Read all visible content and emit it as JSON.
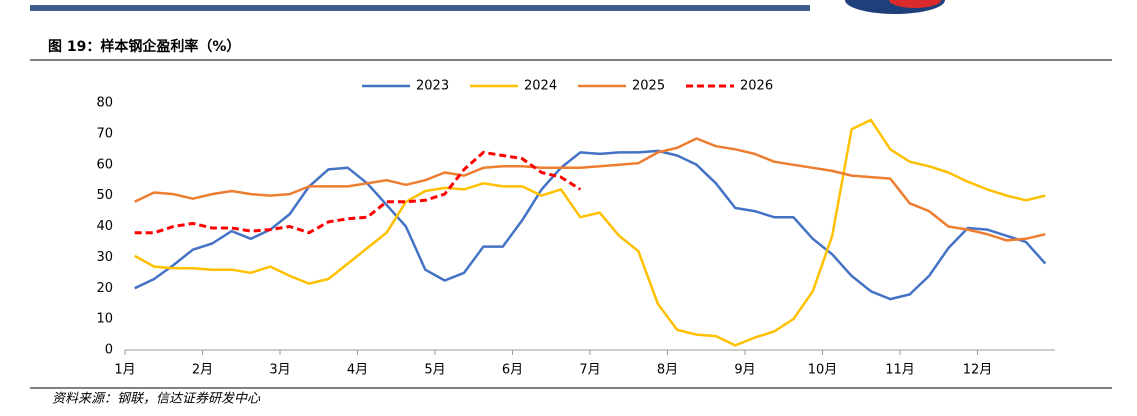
{
  "header": {
    "title": "图 19：样本钢企盈利率（%）"
  },
  "chart_data": {
    "type": "line",
    "categories": [
      "1月",
      null,
      null,
      null,
      "2月",
      null,
      null,
      null,
      "3月",
      null,
      null,
      null,
      "4月",
      null,
      null,
      null,
      "5月",
      null,
      null,
      null,
      "6月",
      null,
      null,
      null,
      "7月",
      null,
      null,
      null,
      "8月",
      null,
      null,
      null,
      "9月",
      null,
      null,
      null,
      "10月",
      null,
      null,
      null,
      "11月",
      null,
      null,
      null,
      "12月",
      null,
      null,
      null
    ],
    "series": [
      {
        "name": "2023",
        "color": "#4472c4",
        "dash": false,
        "values": [
          20,
          23,
          27.5,
          32.5,
          34.5,
          38.5,
          36,
          39,
          44,
          53,
          58.5,
          59,
          54,
          47,
          40,
          26,
          22.5,
          25,
          33.5,
          33.5,
          42,
          52,
          59,
          64,
          63.5,
          64,
          64,
          64.5,
          63,
          60,
          54,
          46,
          45,
          43,
          43,
          36,
          31,
          24,
          19,
          16.5,
          18,
          24,
          33,
          39.5,
          39,
          37,
          35,
          28
        ]
      },
      {
        "name": "2024",
        "color": "#ffc000",
        "dash": false,
        "values": [
          30.5,
          27,
          26.5,
          26.5,
          26,
          26,
          25,
          27,
          24,
          21.5,
          23,
          28,
          33,
          38,
          48,
          51.5,
          52.5,
          52,
          54,
          53,
          53,
          50,
          52,
          43,
          44.5,
          37,
          32,
          15,
          6.5,
          5,
          4.5,
          1.5,
          4,
          6,
          10,
          19,
          37,
          71.5,
          74.5,
          65,
          61,
          59.5,
          57.5,
          54.5,
          52,
          50,
          48.5,
          50
        ]
      },
      {
        "name": "2025",
        "color": "#ed7d31",
        "dash": false,
        "values": [
          48,
          51,
          50.5,
          49,
          50.5,
          51.5,
          50.5,
          50,
          50.5,
          53,
          53,
          53,
          54,
          55,
          53.5,
          55,
          57.5,
          56.5,
          59,
          59.5,
          59.5,
          59,
          59,
          59,
          59.5,
          60,
          60.5,
          64,
          65.5,
          68.5,
          66,
          65,
          63.5,
          61,
          60,
          59,
          58,
          56.5,
          56,
          55.5,
          47.5,
          45,
          40,
          39,
          37.5,
          35.5,
          36,
          37.5
        ]
      },
      {
        "name": "2026",
        "color": "#ff0000",
        "dash": true,
        "values": [
          38,
          38,
          40,
          41,
          39.5,
          39.5,
          38.5,
          39,
          40,
          38,
          41.5,
          42.5,
          43,
          48,
          48,
          48.5,
          50.5,
          58.5,
          64,
          63,
          62,
          57.5,
          56,
          52,
          null,
          null,
          null,
          null,
          null,
          null,
          null,
          null,
          null,
          null,
          null,
          null,
          null,
          null,
          null,
          null,
          null,
          null,
          null,
          null,
          null,
          null,
          null,
          null
        ]
      }
    ],
    "ylim": [
      0,
      80
    ],
    "yticks": [
      0,
      10,
      20,
      30,
      40,
      50,
      60,
      70,
      80
    ],
    "grid": false,
    "legend": "top"
  },
  "footer": {
    "source": "资料来源：钢联，信达证券研发中心"
  }
}
